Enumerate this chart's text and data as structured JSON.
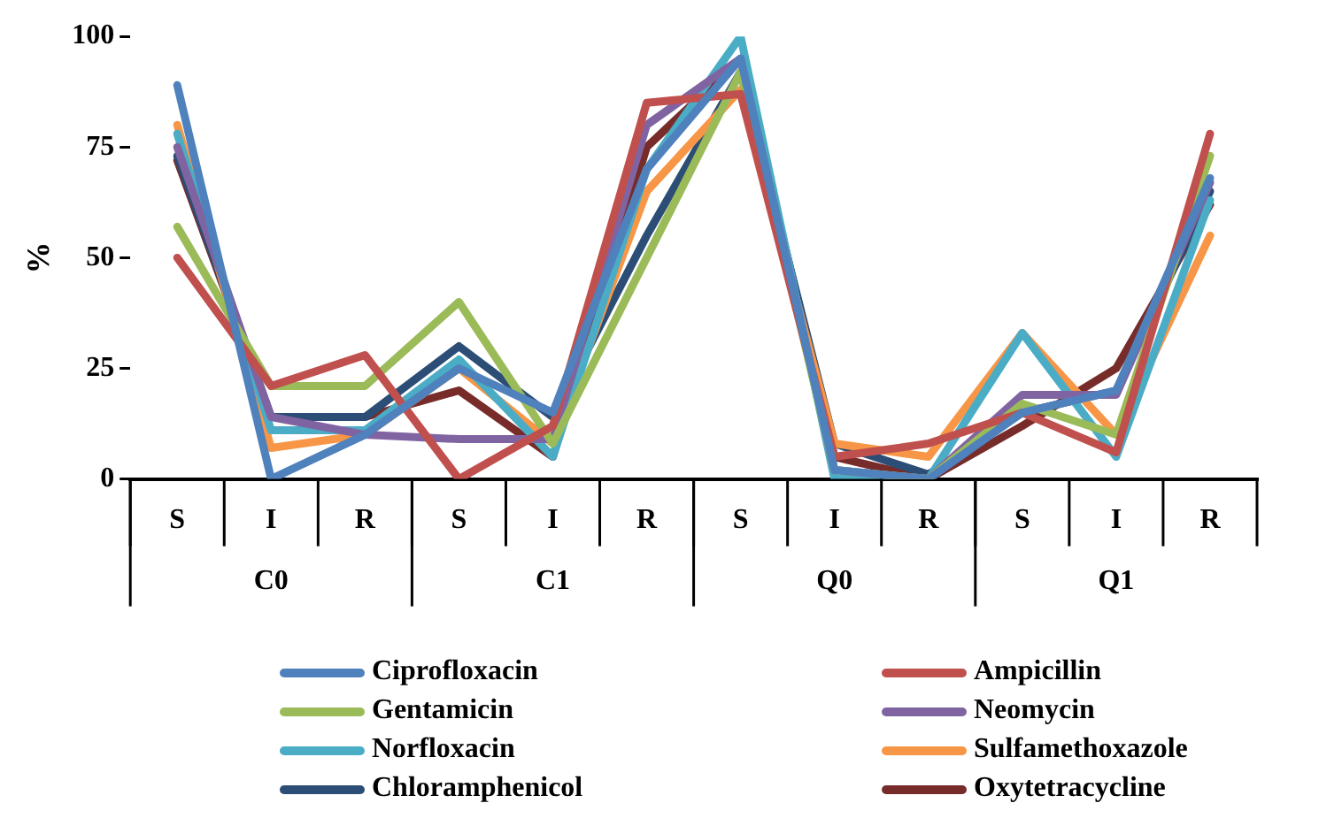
{
  "chart_data": {
    "type": "line",
    "ylabel": "%",
    "categories": [
      "S",
      "I",
      "R",
      "S",
      "I",
      "R",
      "S",
      "I",
      "R",
      "S",
      "I",
      "R"
    ],
    "annotations": [
      "C0",
      "C1",
      "Q0",
      "Q1"
    ],
    "ylim": [
      0,
      100
    ],
    "yticks": [
      0,
      25,
      50,
      75,
      100
    ],
    "grid": false,
    "legend": "bottom",
    "marker": "none",
    "line_style": "solid",
    "series": [
      {
        "name": "Ciprofloxacin",
        "color": "#4f81bd",
        "values": [
          89,
          0,
          10,
          25,
          15,
          70,
          95,
          2,
          0,
          15,
          20,
          68
        ]
      },
      {
        "name": "Ampicillin",
        "color": "#c0504d",
        "values": [
          50,
          21,
          28,
          0,
          12,
          85,
          87,
          5,
          8,
          15,
          6,
          78
        ]
      },
      {
        "name": "Gentamicin",
        "color": "#9bbb59",
        "values": [
          57,
          21,
          21,
          40,
          8,
          50,
          92,
          2,
          0,
          17,
          10,
          73
        ]
      },
      {
        "name": "Neomycin",
        "color": "#8064a2",
        "values": [
          75,
          14,
          10,
          9,
          9,
          80,
          95,
          2,
          0,
          19,
          19,
          67
        ]
      },
      {
        "name": "Norfloxacin",
        "color": "#4bacc6",
        "values": [
          78,
          11,
          11,
          27,
          5,
          70,
          100,
          0,
          0,
          33,
          5,
          63
        ]
      },
      {
        "name": "Sulfamethoxazole",
        "color": "#f79646",
        "values": [
          80,
          7,
          10,
          25,
          8,
          65,
          88,
          8,
          5,
          33,
          10,
          55
        ]
      },
      {
        "name": "Chloramphenicol",
        "color": "#2c4d75",
        "values": [
          73,
          14,
          14,
          30,
          14,
          55,
          92,
          8,
          1,
          15,
          20,
          65
        ]
      },
      {
        "name": "Oxytetracycline",
        "color": "#772c2a",
        "values": [
          72,
          14,
          14,
          20,
          5,
          75,
          95,
          5,
          0,
          12,
          25,
          62
        ]
      }
    ]
  }
}
